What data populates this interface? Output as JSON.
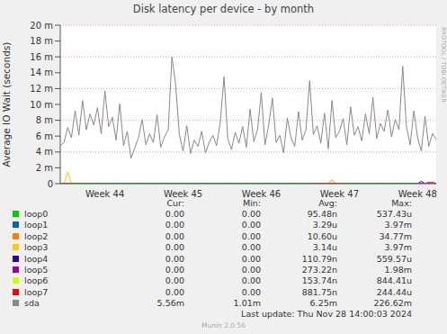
{
  "chart_data": {
    "type": "line",
    "title": "Disk latency per device - by month",
    "y_label": "Average IO Wait (seconds)",
    "side_text": "RRDTOOL / TOBI OETIKER",
    "footer": "Last update: Thu Nov 28 14:00:03 2024",
    "version": "Munin 2.0.56",
    "legend_columns": [
      "Cur:",
      "Min:",
      "Avg:",
      "Max:"
    ],
    "grid": true,
    "ylim": [
      0,
      0.02
    ],
    "yticks": [
      0,
      {
        "value": 0.002,
        "label": "2 m"
      },
      {
        "value": 0.004,
        "label": "4 m"
      },
      {
        "value": 0.006,
        "label": "6 m"
      },
      {
        "value": 0.008,
        "label": "8 m"
      },
      {
        "value": 0.01,
        "label": "10 m"
      },
      {
        "value": 0.012,
        "label": "12 m"
      },
      {
        "value": 0.014,
        "label": "14 m"
      },
      {
        "value": 0.016,
        "label": "16 m"
      },
      {
        "value": 0.018,
        "label": "18 m"
      },
      {
        "value": 0.02,
        "label": "20 m"
      }
    ],
    "categories": [
      null,
      null,
      null,
      null,
      null,
      null,
      null,
      null,
      null,
      null,
      null,
      null,
      "Week 44",
      null,
      null,
      null,
      null,
      null,
      null,
      null,
      null,
      null,
      null,
      null,
      null,
      null,
      null,
      null,
      null,
      null,
      null,
      null,
      null,
      "Week 45",
      null,
      null,
      null,
      null,
      null,
      null,
      null,
      null,
      null,
      null,
      null,
      null,
      null,
      null,
      null,
      null,
      null,
      null,
      null,
      null,
      "Week 46",
      null,
      null,
      null,
      null,
      null,
      null,
      null,
      null,
      null,
      null,
      null,
      null,
      null,
      null,
      null,
      null,
      null,
      null,
      null,
      null,
      "Week 47",
      null,
      null,
      null,
      null,
      null,
      null,
      null,
      null,
      null,
      null,
      null,
      null,
      null,
      null,
      null,
      null,
      null,
      null,
      null,
      null,
      "Week 48",
      null,
      null,
      null,
      null,
      null
    ],
    "series": [
      {
        "name": "loop0",
        "color": "#00cc00",
        "stats": [
          "0.00",
          "0.00",
          "95.48n",
          "537.43u"
        ],
        "values": [
          0,
          0,
          0,
          0,
          0,
          0,
          0,
          0,
          0,
          0,
          0,
          0,
          0,
          0,
          0,
          0,
          0,
          0,
          0,
          0,
          0,
          0,
          0,
          0,
          0,
          0,
          0,
          0,
          0,
          0,
          0,
          0,
          0,
          0,
          0,
          0,
          0,
          0,
          0,
          0,
          0,
          0,
          0,
          0,
          0,
          0,
          0,
          0,
          0,
          0,
          0,
          0,
          0,
          0,
          0,
          0,
          0,
          0,
          0,
          0,
          0,
          0,
          0,
          0,
          0,
          0,
          0,
          0,
          0,
          0,
          0,
          0,
          0,
          0,
          0,
          0,
          0,
          0,
          0,
          0,
          0,
          0,
          0,
          0,
          0,
          0,
          0,
          0,
          0,
          0,
          0,
          0,
          0,
          0,
          0,
          0,
          0,
          0,
          0,
          0,
          0,
          0
        ]
      },
      {
        "name": "loop1",
        "color": "#0066b3",
        "stats": [
          "0.00",
          "0.00",
          "3.29u",
          "3.97m"
        ],
        "values": [
          0,
          0,
          0,
          0,
          0,
          0,
          0,
          0,
          0,
          0,
          0,
          0,
          0,
          0,
          0,
          0,
          0,
          0,
          0,
          0,
          0,
          0,
          0,
          0,
          0,
          0,
          0,
          0,
          0,
          0,
          0,
          0,
          0,
          0,
          0,
          0,
          0,
          0,
          0,
          0,
          0,
          0,
          0,
          0,
          0,
          0,
          0,
          0,
          0,
          0,
          0,
          0,
          0,
          0,
          0,
          0,
          0,
          0,
          0,
          0,
          0,
          0,
          0,
          0,
          0,
          0,
          0,
          0,
          0,
          0,
          0,
          0,
          0,
          0,
          0,
          0,
          0,
          0,
          0,
          0,
          0,
          0,
          0,
          0,
          0,
          0,
          0,
          0,
          0,
          0,
          0,
          0,
          0,
          0,
          0,
          0,
          0,
          0,
          0,
          0,
          0,
          0
        ]
      },
      {
        "name": "loop2",
        "color": "#ff8000",
        "stats": [
          "0.00",
          "0.00",
          "10.60u",
          "34.77m"
        ],
        "values": [
          0,
          0,
          0,
          0,
          0,
          0,
          0,
          0,
          0,
          0,
          0,
          0,
          0,
          0,
          0,
          0,
          0,
          0,
          0,
          0,
          0,
          0,
          0,
          0,
          0,
          0,
          0,
          0,
          0,
          0,
          0,
          0,
          0,
          0,
          0,
          0,
          0,
          0,
          0,
          0,
          0,
          0,
          0,
          0,
          0,
          0,
          0,
          0,
          0,
          0,
          0,
          0,
          0,
          0,
          0,
          0,
          0,
          0,
          0,
          0,
          0,
          0,
          0,
          0,
          0,
          0,
          0,
          0,
          0,
          0,
          0,
          0,
          0,
          0.0005,
          0,
          0,
          0,
          0,
          0,
          0,
          0,
          0,
          0,
          0,
          0,
          0,
          0,
          0,
          0,
          0,
          0,
          0,
          0,
          0,
          0,
          0,
          0,
          0,
          0,
          0,
          0,
          0
        ]
      },
      {
        "name": "loop3",
        "color": "#ffcc00",
        "stats": [
          "0.00",
          "0.00",
          "3.14u",
          "3.97m"
        ],
        "values": [
          0,
          0,
          0.0015,
          0,
          0,
          0,
          0,
          0,
          0,
          0,
          0,
          0,
          0,
          0,
          0,
          0,
          0,
          0,
          0,
          0,
          0,
          0,
          0,
          0,
          0,
          0,
          0,
          0,
          0,
          0,
          0,
          0,
          0,
          0,
          0,
          0,
          0,
          0,
          0,
          0,
          0,
          0,
          0,
          0,
          0,
          0,
          0,
          0,
          0,
          0,
          0,
          0,
          0,
          0,
          0,
          0,
          0,
          0,
          0,
          0,
          0,
          0,
          0,
          0,
          0,
          0,
          0,
          0,
          0,
          0,
          0,
          0,
          0,
          0,
          0,
          0,
          0,
          0,
          0,
          0,
          0,
          0,
          0,
          0,
          0,
          0,
          0,
          0,
          0,
          0,
          0,
          0,
          0,
          0,
          0,
          0,
          0,
          0,
          0,
          0,
          0,
          0
        ]
      },
      {
        "name": "loop4",
        "color": "#330099",
        "stats": [
          "0.00",
          "0.00",
          "110.79n",
          "559.57u"
        ],
        "values": [
          0,
          0,
          0,
          0,
          0,
          0,
          0,
          0,
          0,
          0,
          0,
          0,
          0,
          0,
          0,
          0,
          0,
          0,
          0,
          0,
          0,
          0,
          0,
          0,
          0,
          0,
          0,
          0,
          0,
          0,
          0,
          0,
          0,
          0,
          0,
          0,
          0,
          0,
          0,
          0,
          0,
          0,
          0,
          0,
          0,
          0,
          0,
          0,
          0,
          0,
          0,
          0,
          0,
          0,
          0,
          0,
          0,
          0,
          0,
          0,
          0,
          0,
          0,
          0,
          0,
          0,
          0,
          0,
          0,
          0,
          0,
          0,
          0,
          0,
          0,
          0,
          0,
          0,
          0,
          0,
          0,
          0,
          0,
          0,
          0,
          0,
          0,
          0,
          0,
          0,
          0,
          0,
          0,
          0,
          0,
          0,
          0,
          0.0003,
          0,
          0,
          0,
          0
        ]
      },
      {
        "name": "loop5",
        "color": "#990099",
        "stats": [
          "0.00",
          "0.00",
          "273.22n",
          "1.98m"
        ],
        "values": [
          0,
          0,
          0,
          0,
          0,
          0,
          0,
          0,
          0,
          0,
          0,
          0,
          0,
          0,
          0,
          0,
          0,
          0,
          0,
          0,
          0,
          0,
          0,
          0,
          0,
          0,
          0,
          0,
          0,
          0,
          0,
          0,
          0,
          0,
          0,
          0,
          0,
          0,
          0,
          0,
          0,
          0,
          0,
          0,
          0,
          0,
          0,
          0,
          0,
          0,
          0,
          0,
          0,
          0,
          0,
          0,
          0,
          0,
          0,
          0,
          0,
          0,
          0,
          0,
          0,
          0,
          0,
          0,
          0,
          0,
          0,
          0,
          0,
          0,
          0,
          0,
          0,
          0,
          0,
          0,
          0,
          0,
          0,
          0,
          0,
          0,
          0,
          0,
          0,
          0,
          0,
          0,
          0,
          0,
          0,
          0,
          0,
          0,
          0,
          0.0002,
          0,
          0
        ]
      },
      {
        "name": "loop6",
        "color": "#ccff00",
        "stats": [
          "0.00",
          "0.00",
          "153.74n",
          "844.41u"
        ],
        "values": [
          0,
          0,
          0,
          0,
          0,
          0,
          0,
          0,
          0,
          0,
          0,
          0,
          0,
          0,
          0,
          0,
          0,
          0,
          0,
          0,
          0,
          0,
          0,
          0,
          0,
          0,
          0,
          0,
          0,
          0,
          0,
          0,
          0,
          0,
          0,
          0,
          0,
          0,
          0,
          0,
          0,
          0,
          0,
          0,
          0,
          0,
          0,
          0,
          0,
          0,
          0,
          0,
          0,
          0,
          0,
          0,
          0,
          0,
          0,
          0,
          0,
          0,
          0,
          0,
          0,
          0,
          0,
          0,
          0,
          0,
          0,
          0,
          0,
          0,
          0,
          0,
          0,
          0,
          0,
          0,
          0,
          0,
          0,
          0,
          0,
          0,
          0,
          0,
          0,
          0,
          0,
          0,
          0,
          0,
          0,
          0,
          0,
          0,
          0,
          0,
          0,
          0
        ]
      },
      {
        "name": "loop7",
        "color": "#ff0000",
        "stats": [
          "0.00",
          "0.00",
          "881.75n",
          "244.44u"
        ],
        "values": [
          0,
          0,
          0,
          0,
          0,
          0,
          0,
          0,
          0,
          0,
          0,
          0,
          0,
          0,
          0,
          0,
          0,
          0,
          0,
          0,
          0,
          0,
          0,
          0,
          0,
          0,
          0,
          0,
          0,
          0,
          0,
          0,
          0,
          0,
          0,
          0,
          0,
          0,
          0,
          0,
          0,
          0,
          0,
          0,
          0,
          0,
          0,
          0,
          0,
          0,
          0,
          0,
          0,
          0,
          0,
          0,
          0,
          0,
          0,
          0,
          0,
          0,
          0,
          0,
          0,
          0,
          0,
          0,
          0,
          0,
          0,
          0,
          0,
          0,
          0,
          0,
          0,
          0,
          0,
          0,
          0,
          0,
          0,
          0,
          0,
          0,
          0,
          0,
          0,
          0,
          0,
          0,
          0,
          0,
          0,
          0,
          0,
          0,
          0,
          0,
          0.0002,
          0
        ]
      },
      {
        "name": "sda",
        "color": "#888888",
        "stats": [
          "5.56m",
          "1.01m",
          "6.25m",
          "226.62m"
        ],
        "values": [
          0.0048,
          0.0052,
          0.0071,
          0.0058,
          0.0092,
          0.0061,
          0.0105,
          0.0068,
          0.0088,
          0.0074,
          0.0096,
          0.0063,
          0.0117,
          0.0072,
          0.0084,
          0.0055,
          0.0101,
          0.0048,
          0.0066,
          0.0032,
          0.0045,
          0.0058,
          0.0081,
          0.0049,
          0.0063,
          0.0052,
          0.0087,
          0.0046,
          0.0059,
          0.0068,
          0.016,
          0.0125,
          0.0062,
          0.0041,
          0.0073,
          0.0038,
          0.0055,
          0.0047,
          0.0066,
          0.0039,
          0.0052,
          0.0061,
          0.0048,
          0.0078,
          0.0135,
          0.0057,
          0.0043,
          0.0065,
          0.0051,
          0.0072,
          0.0046,
          0.0094,
          0.0053,
          0.0068,
          0.0115,
          0.0049,
          0.0074,
          0.0108,
          0.0052,
          0.0061,
          0.0039,
          0.0083,
          0.0058,
          0.0047,
          0.0091,
          0.0055,
          0.0068,
          0.013,
          0.0062,
          0.0073,
          0.0051,
          0.0089,
          0.0044,
          0.0105,
          0.0058,
          0.0066,
          0.0082,
          0.0049,
          0.0097,
          0.0061,
          0.0072,
          0.0054,
          0.0088,
          0.0063,
          0.0109,
          0.0057,
          0.0076,
          0.0066,
          0.0093,
          0.0059,
          0.0081,
          0.0068,
          0.0148,
          0.0072,
          0.0049,
          0.0092,
          0.0058,
          0.0041,
          0.0085,
          0.0047,
          0.0063,
          0.0056
        ]
      }
    ]
  }
}
